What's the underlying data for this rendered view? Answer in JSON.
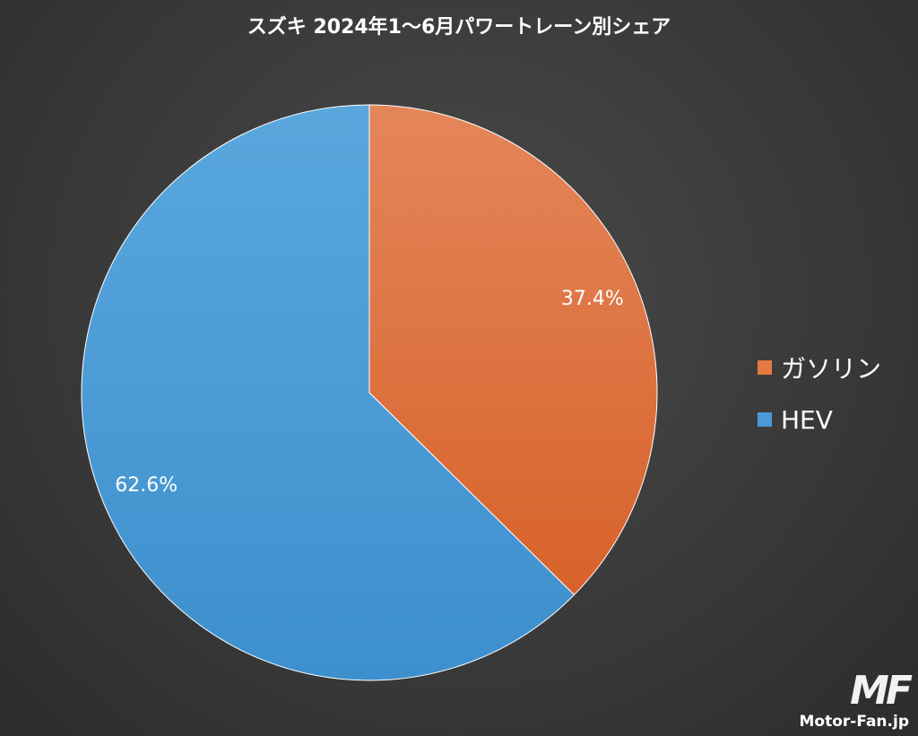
{
  "chart_data": {
    "type": "pie",
    "title": "スズキ 2024年1〜6月パワートレーン別シェア",
    "slices": [
      {
        "label": "ガソリン",
        "value": 37.4,
        "display": "37.4%",
        "color": "#e57a42"
      },
      {
        "label": "HEV",
        "value": 62.6,
        "display": "62.6%",
        "color": "#4a9ad8"
      }
    ],
    "legend_placement": "right"
  },
  "watermark": {
    "logo": "MF",
    "text": "Motor-Fan.jp"
  }
}
